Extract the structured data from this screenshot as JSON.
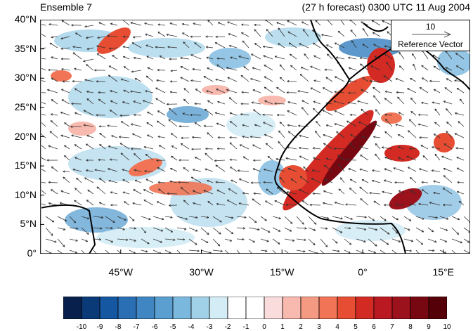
{
  "title": {
    "left": "Ensemble 7",
    "right": "(27 h forecast) 0300 UTC 11 Aug 2004"
  },
  "map": {
    "lon_range": [
      -60,
      20
    ],
    "lat_range": [
      0,
      40
    ],
    "lat_ticks": [
      {
        "value": 40,
        "label": "40°N"
      },
      {
        "value": 35,
        "label": "35°N"
      },
      {
        "value": 30,
        "label": "30°N"
      },
      {
        "value": 25,
        "label": "25°N"
      },
      {
        "value": 20,
        "label": "20°N"
      },
      {
        "value": 15,
        "label": "15°N"
      },
      {
        "value": 10,
        "label": "10°N"
      },
      {
        "value": 5,
        "label": "5°N"
      },
      {
        "value": 0,
        "label": "0°"
      }
    ],
    "lon_ticks": [
      {
        "value": -45,
        "label": "45°W"
      },
      {
        "value": -30,
        "label": "30°W"
      },
      {
        "value": -15,
        "label": "15°W"
      },
      {
        "value": 0,
        "label": "0°"
      },
      {
        "value": 15,
        "label": "15°E"
      }
    ],
    "reference_vector": {
      "magnitude": "10",
      "label": "Reference Vector"
    }
  },
  "colorbar": {
    "colors": [
      "#08214c",
      "#0b3a78",
      "#1557a0",
      "#2a6fb4",
      "#3f86c2",
      "#5a9fd0",
      "#7ab8de",
      "#a0d1e8",
      "#d3ecf5",
      "#ffffff",
      "#ffffff",
      "#fbdcdc",
      "#f8b9ae",
      "#f59a82",
      "#f07455",
      "#e64d33",
      "#d32a23",
      "#bb1921",
      "#9b111c",
      "#770812",
      "#550009"
    ],
    "labels": [
      "-10",
      "-9",
      "-8",
      "-7",
      "-6",
      "-5",
      "-4",
      "-3",
      "-2",
      "-1",
      "0",
      "1",
      "2",
      "3",
      "4",
      "5",
      "6",
      "7",
      "8",
      "9",
      "10"
    ]
  }
}
